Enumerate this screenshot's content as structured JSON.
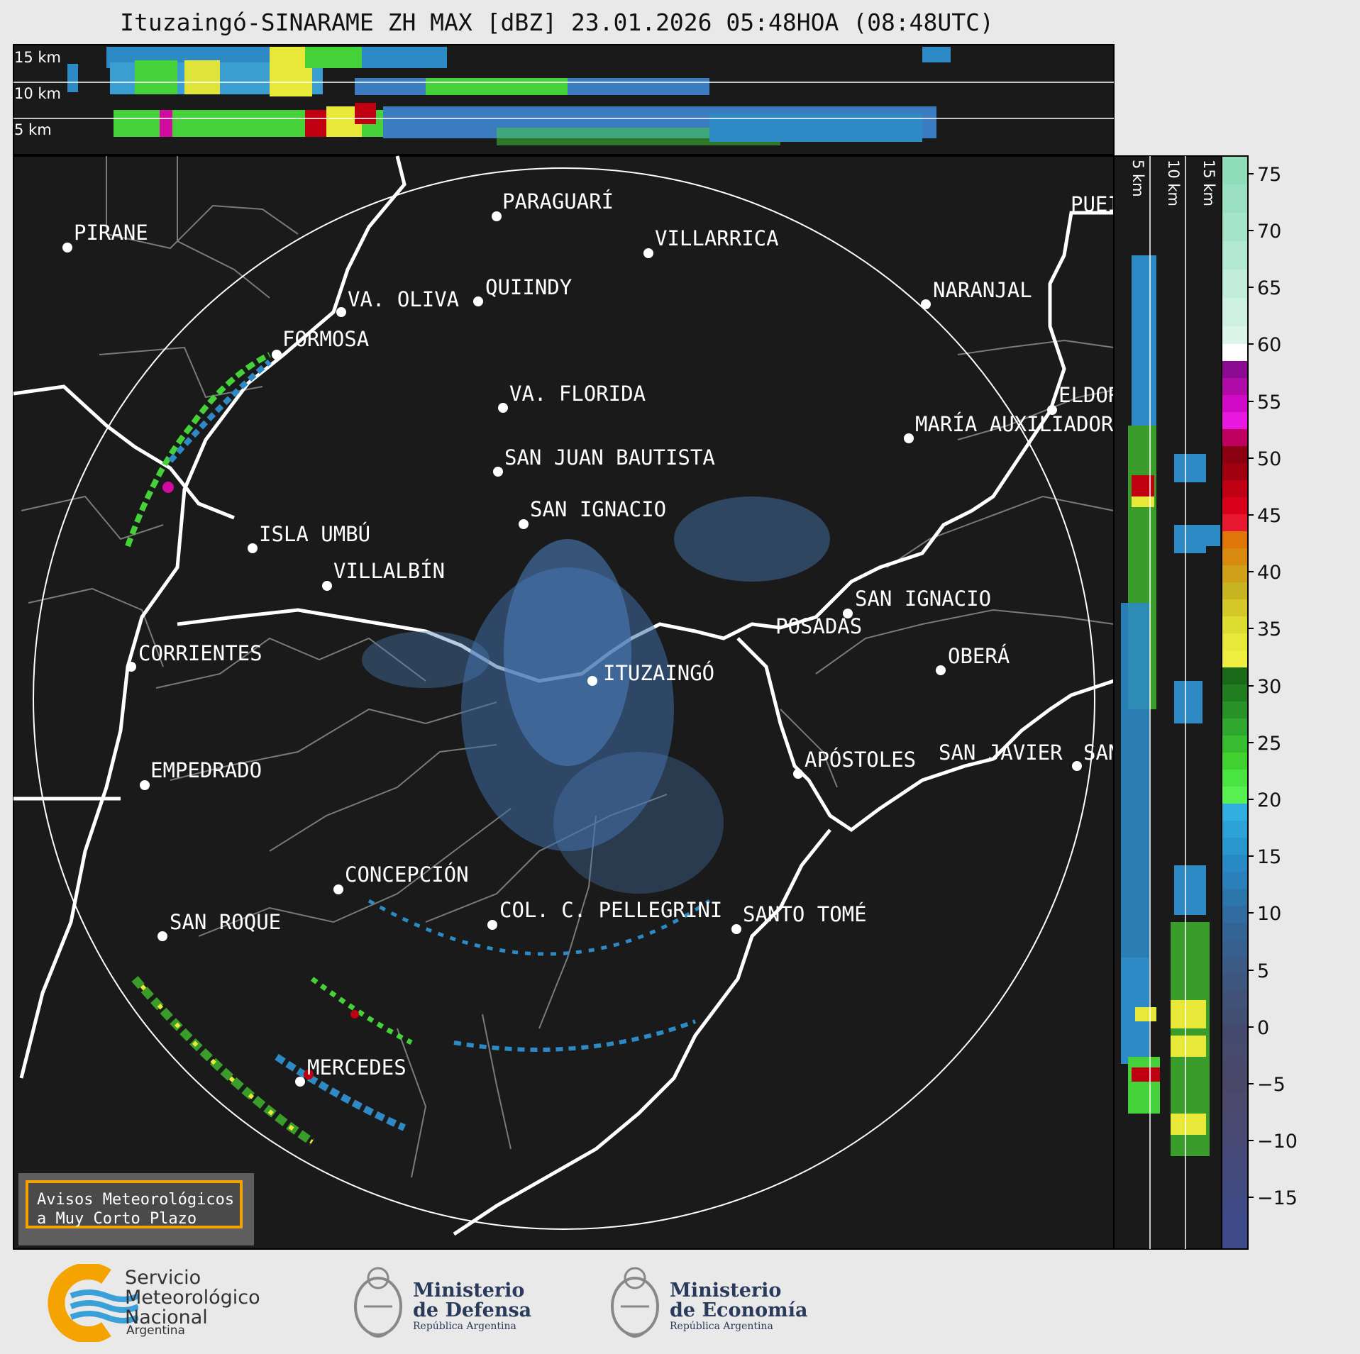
{
  "header": {
    "title": "Ituzaingó-SINARAME ZH MAX [dBZ] 23.01.2026 05:48HOA (08:48UTC)"
  },
  "top_panel": {
    "height_labels": [
      "15 km",
      "10 km",
      "5 km"
    ]
  },
  "side_panel": {
    "height_labels": [
      "5 km",
      "10 km",
      "15 km"
    ]
  },
  "colorbar": {
    "ticks": [
      "75",
      "70",
      "65",
      "60",
      "55",
      "50",
      "45",
      "40",
      "35",
      "30",
      "25",
      "20",
      "15",
      "10",
      "5",
      "0",
      "−5",
      "−10",
      "−15"
    ]
  },
  "cities": [
    {
      "name": "PIRANE"
    },
    {
      "name": "PARAGUARÍ"
    },
    {
      "name": "VILLARRICA"
    },
    {
      "name": "VA. OLIVA"
    },
    {
      "name": "QUIINDY"
    },
    {
      "name": "NARANJAL"
    },
    {
      "name": "FORMOSA"
    },
    {
      "name": "VA. FLORIDA"
    },
    {
      "name": "ELDOR"
    },
    {
      "name": "MARÍA AUXILIADOR"
    },
    {
      "name": "SAN JUAN BAUTISTA"
    },
    {
      "name": "SAN IGNACIO"
    },
    {
      "name": "ISLA UMBÚ"
    },
    {
      "name": "VILLALBÍN"
    },
    {
      "name": "SAN IGNACIO"
    },
    {
      "name": "POSADAS"
    },
    {
      "name": "CORRIENTES"
    },
    {
      "name": "ITUZAINGÓ"
    },
    {
      "name": "OBERÁ"
    },
    {
      "name": "EMPEDRADO"
    },
    {
      "name": "APÓSTOLES"
    },
    {
      "name": "SAN JAVIER"
    },
    {
      "name": "SAN"
    },
    {
      "name": "CONCEPCIÓN"
    },
    {
      "name": "COL. C. PELLEGRINI"
    },
    {
      "name": "SANTO TOMÉ"
    },
    {
      "name": "SAN ROQUE"
    },
    {
      "name": "MERCEDES"
    },
    {
      "name": "PUEI"
    }
  ],
  "notice": {
    "line1": "Avisos Meteorológicos",
    "line2": "a Muy Corto Plazo"
  },
  "logos": {
    "smn_line1": "Servicio",
    "smn_line2": "Meteorológico",
    "smn_line3": "Nacional",
    "smn_sub": "Argentina",
    "defensa_line1": "Ministerio",
    "defensa_line2": "de Defensa",
    "defensa_sub": "República Argentina",
    "economia_line1": "Ministerio",
    "economia_line2": "de Economía",
    "economia_sub": "República Argentina"
  },
  "colors": {
    "background": "#1a1a1a",
    "accent": "#f5a300"
  }
}
